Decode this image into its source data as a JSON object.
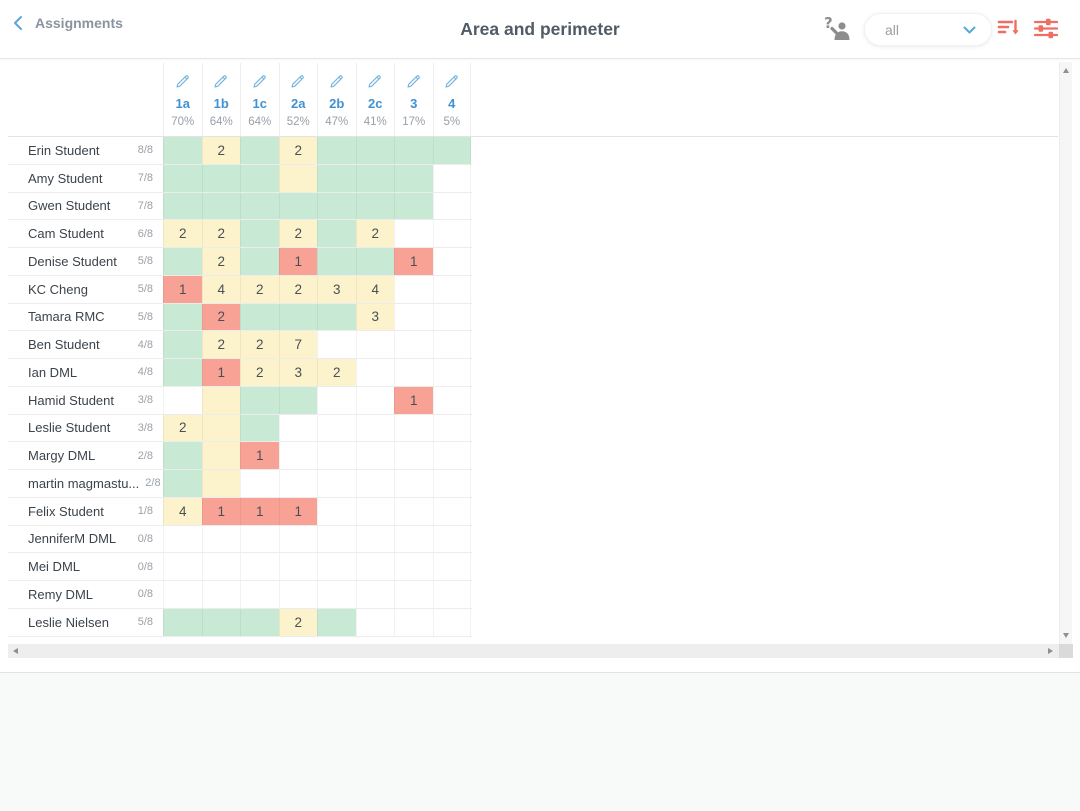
{
  "topbar": {
    "back_label": "Assignments",
    "title": "Area and perimeter",
    "filter_dropdown": {
      "value": "all"
    },
    "icons": [
      "back-chevron-icon",
      "anonymize-student-icon",
      "sort-descending-icon",
      "filter-sliders-icon",
      "chevron-down-icon"
    ]
  },
  "colors": {
    "green": "#c8ead4",
    "yellow": "#fcf3cc",
    "red": "#f8a296",
    "white": "#ffffff",
    "label_blue": "#4092d2",
    "icon_blue": "#74b4de",
    "icon_red": "#ee6e63",
    "icon_gray": "#8d8d8d"
  },
  "grade_columns": [
    {
      "label": "1a",
      "percent": "70%"
    },
    {
      "label": "1b",
      "percent": "64%"
    },
    {
      "label": "1c",
      "percent": "64%"
    },
    {
      "label": "2a",
      "percent": "52%"
    },
    {
      "label": "2b",
      "percent": "47%"
    },
    {
      "label": "2c",
      "percent": "41%"
    },
    {
      "label": "3",
      "percent": "17%"
    },
    {
      "label": "4",
      "percent": "5%"
    }
  ],
  "students": [
    {
      "name": "Erin Student",
      "score": "8/8",
      "cells": [
        [
          "g",
          ""
        ],
        [
          "y",
          "2"
        ],
        [
          "g",
          ""
        ],
        [
          "y",
          "2"
        ],
        [
          "g",
          ""
        ],
        [
          "g",
          ""
        ],
        [
          "g",
          ""
        ],
        [
          "g",
          ""
        ]
      ]
    },
    {
      "name": "Amy Student",
      "score": "7/8",
      "cells": [
        [
          "g",
          ""
        ],
        [
          "g",
          ""
        ],
        [
          "g",
          ""
        ],
        [
          "y",
          ""
        ],
        [
          "g",
          ""
        ],
        [
          "g",
          ""
        ],
        [
          "g",
          ""
        ],
        [
          "w",
          ""
        ]
      ]
    },
    {
      "name": "Gwen Student",
      "score": "7/8",
      "cells": [
        [
          "g",
          ""
        ],
        [
          "g",
          ""
        ],
        [
          "g",
          ""
        ],
        [
          "g",
          ""
        ],
        [
          "g",
          ""
        ],
        [
          "g",
          ""
        ],
        [
          "g",
          ""
        ],
        [
          "w",
          ""
        ]
      ]
    },
    {
      "name": "Cam Student",
      "score": "6/8",
      "cells": [
        [
          "y",
          "2"
        ],
        [
          "y",
          "2"
        ],
        [
          "g",
          ""
        ],
        [
          "y",
          "2"
        ],
        [
          "g",
          ""
        ],
        [
          "y",
          "2"
        ],
        [
          "w",
          ""
        ],
        [
          "w",
          ""
        ]
      ]
    },
    {
      "name": "Denise Student",
      "score": "5/8",
      "cells": [
        [
          "g",
          ""
        ],
        [
          "y",
          "2"
        ],
        [
          "g",
          ""
        ],
        [
          "r",
          "1"
        ],
        [
          "g",
          ""
        ],
        [
          "g",
          ""
        ],
        [
          "r",
          "1"
        ],
        [
          "w",
          ""
        ]
      ]
    },
    {
      "name": "KC Cheng",
      "score": "5/8",
      "cells": [
        [
          "r",
          "1"
        ],
        [
          "y",
          "4"
        ],
        [
          "y",
          "2"
        ],
        [
          "y",
          "2"
        ],
        [
          "y",
          "3"
        ],
        [
          "y",
          "4"
        ],
        [
          "w",
          ""
        ],
        [
          "w",
          ""
        ]
      ]
    },
    {
      "name": "Tamara RMC",
      "score": "5/8",
      "cells": [
        [
          "g",
          ""
        ],
        [
          "r",
          "2"
        ],
        [
          "g",
          ""
        ],
        [
          "g",
          ""
        ],
        [
          "g",
          ""
        ],
        [
          "y",
          "3"
        ],
        [
          "w",
          ""
        ],
        [
          "w",
          ""
        ]
      ]
    },
    {
      "name": "Ben Student",
      "score": "4/8",
      "cells": [
        [
          "g",
          ""
        ],
        [
          "y",
          "2"
        ],
        [
          "y",
          "2"
        ],
        [
          "y",
          "7"
        ],
        [
          "w",
          ""
        ],
        [
          "w",
          ""
        ],
        [
          "w",
          ""
        ],
        [
          "w",
          ""
        ]
      ]
    },
    {
      "name": "Ian DML",
      "score": "4/8",
      "cells": [
        [
          "g",
          ""
        ],
        [
          "r",
          "1"
        ],
        [
          "y",
          "2"
        ],
        [
          "y",
          "3"
        ],
        [
          "y",
          "2"
        ],
        [
          "w",
          ""
        ],
        [
          "w",
          ""
        ],
        [
          "w",
          ""
        ]
      ]
    },
    {
      "name": "Hamid Student",
      "score": "3/8",
      "cells": [
        [
          "w",
          ""
        ],
        [
          "y",
          ""
        ],
        [
          "g",
          ""
        ],
        [
          "g",
          ""
        ],
        [
          "w",
          ""
        ],
        [
          "w",
          ""
        ],
        [
          "r",
          "1"
        ],
        [
          "w",
          ""
        ]
      ]
    },
    {
      "name": "Leslie Student",
      "score": "3/8",
      "cells": [
        [
          "y",
          "2"
        ],
        [
          "y",
          ""
        ],
        [
          "g",
          ""
        ],
        [
          "w",
          ""
        ],
        [
          "w",
          ""
        ],
        [
          "w",
          ""
        ],
        [
          "w",
          ""
        ],
        [
          "w",
          ""
        ]
      ]
    },
    {
      "name": "Margy DML",
      "score": "2/8",
      "cells": [
        [
          "g",
          ""
        ],
        [
          "y",
          ""
        ],
        [
          "r",
          "1"
        ],
        [
          "w",
          ""
        ],
        [
          "w",
          ""
        ],
        [
          "w",
          ""
        ],
        [
          "w",
          ""
        ],
        [
          "w",
          ""
        ]
      ]
    },
    {
      "name": "martin magmastu...",
      "score": "2/8",
      "cells": [
        [
          "g",
          ""
        ],
        [
          "y",
          ""
        ],
        [
          "w",
          ""
        ],
        [
          "w",
          ""
        ],
        [
          "w",
          ""
        ],
        [
          "w",
          ""
        ],
        [
          "w",
          ""
        ],
        [
          "w",
          ""
        ]
      ]
    },
    {
      "name": "Felix Student",
      "score": "1/8",
      "cells": [
        [
          "y",
          "4"
        ],
        [
          "r",
          "1"
        ],
        [
          "r",
          "1"
        ],
        [
          "r",
          "1"
        ],
        [
          "w",
          ""
        ],
        [
          "w",
          ""
        ],
        [
          "w",
          ""
        ],
        [
          "w",
          ""
        ]
      ]
    },
    {
      "name": "JenniferM DML",
      "score": "0/8",
      "cells": [
        [
          "w",
          ""
        ],
        [
          "w",
          ""
        ],
        [
          "w",
          ""
        ],
        [
          "w",
          ""
        ],
        [
          "w",
          ""
        ],
        [
          "w",
          ""
        ],
        [
          "w",
          ""
        ],
        [
          "w",
          ""
        ]
      ]
    },
    {
      "name": "Mei DML",
      "score": "0/8",
      "cells": [
        [
          "w",
          ""
        ],
        [
          "w",
          ""
        ],
        [
          "w",
          ""
        ],
        [
          "w",
          ""
        ],
        [
          "w",
          ""
        ],
        [
          "w",
          ""
        ],
        [
          "w",
          ""
        ],
        [
          "w",
          ""
        ]
      ]
    },
    {
      "name": "Remy DML",
      "score": "0/8",
      "cells": [
        [
          "w",
          ""
        ],
        [
          "w",
          ""
        ],
        [
          "w",
          ""
        ],
        [
          "w",
          ""
        ],
        [
          "w",
          ""
        ],
        [
          "w",
          ""
        ],
        [
          "w",
          ""
        ],
        [
          "w",
          ""
        ]
      ]
    },
    {
      "name": "Leslie Nielsen",
      "score": "5/8",
      "cells": [
        [
          "g",
          ""
        ],
        [
          "g",
          ""
        ],
        [
          "g",
          ""
        ],
        [
          "y",
          "2"
        ],
        [
          "g",
          ""
        ],
        [
          "w",
          ""
        ],
        [
          "w",
          ""
        ],
        [
          "w",
          ""
        ]
      ]
    }
  ]
}
